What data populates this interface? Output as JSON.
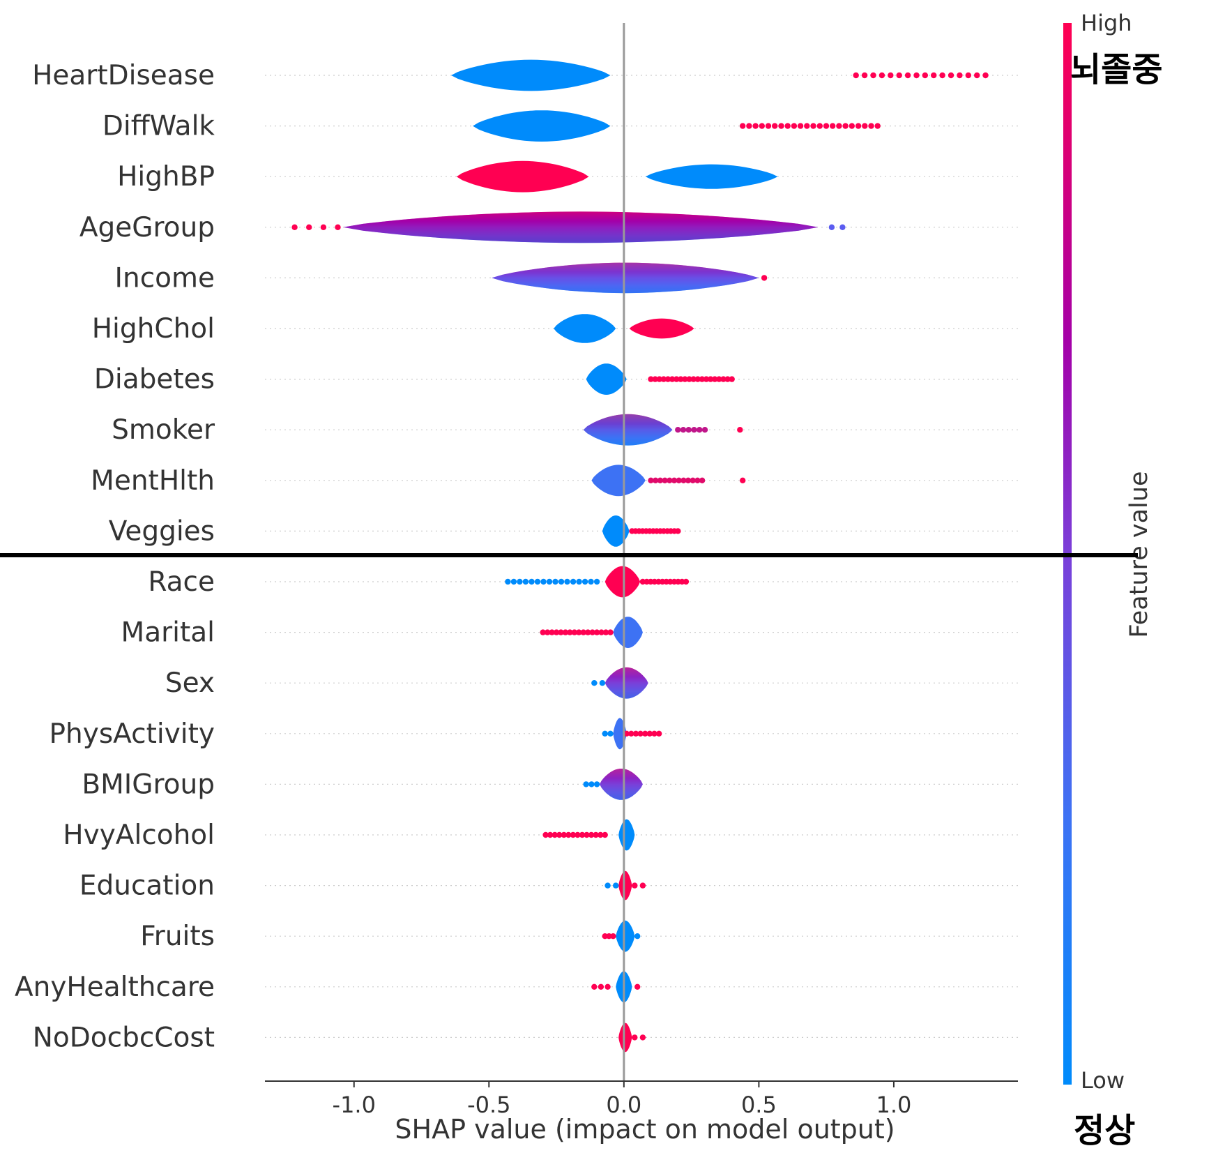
{
  "chart_data": {
    "type": "violin",
    "title": "",
    "xlabel": "SHAP value (impact on model output)",
    "xlim": [
      -1.33,
      1.46
    ],
    "xticks": [
      -1.0,
      -0.5,
      0.0,
      0.5,
      1.0
    ],
    "xtick_labels": [
      "-1.0",
      "-0.5",
      "0.0",
      "0.5",
      "1.0"
    ],
    "colorbar": {
      "title": "Feature value",
      "high_label": "High",
      "low_label": "Low",
      "high_color": "#ff0052",
      "low_color": "#008bfb",
      "mid_color": "#a400a8"
    },
    "annotations": {
      "top": "뇌졸중",
      "bottom": "정상",
      "separator_after_index": 9
    },
    "features": [
      {
        "name": "HeartDisease",
        "blobs": [
          {
            "lo": -0.64,
            "hi": -0.05,
            "w": 0.7,
            "color": "#008bfb"
          }
        ],
        "dots": [
          {
            "from": 0.86,
            "to": 1.34,
            "n": 16,
            "color": "#ff0052"
          }
        ]
      },
      {
        "name": "DiffWalk",
        "blobs": [
          {
            "lo": -0.56,
            "hi": -0.05,
            "w": 0.7,
            "color": "#008bfb"
          }
        ],
        "dots": [
          {
            "from": 0.44,
            "to": 0.94,
            "n": 22,
            "color": "#ff0052"
          }
        ]
      },
      {
        "name": "HighBP",
        "blobs": [
          {
            "lo": -0.62,
            "hi": -0.13,
            "w": 0.7,
            "color": "#ff0052"
          },
          {
            "lo": 0.08,
            "hi": 0.57,
            "w": 0.55,
            "color": "#008bfb"
          }
        ],
        "dots": []
      },
      {
        "name": "AgeGroup",
        "blobs": [
          {
            "lo": -1.04,
            "hi": 0.72,
            "w": 0.7,
            "color": "#a400a8",
            "grad": true
          }
        ],
        "dots": [
          {
            "from": -1.22,
            "to": -1.06,
            "n": 4,
            "color": "#ff0052"
          },
          {
            "from": 0.77,
            "to": 0.81,
            "n": 2,
            "color": "#5b5cf0"
          }
        ]
      },
      {
        "name": "Income",
        "blobs": [
          {
            "lo": -0.49,
            "hi": 0.5,
            "w": 0.68,
            "color": "#5b5cf0",
            "grad": true
          }
        ],
        "dots": [
          {
            "from": 0.52,
            "to": 0.52,
            "n": 1,
            "color": "#ff0052"
          }
        ]
      },
      {
        "name": "HighChol",
        "blobs": [
          {
            "lo": -0.26,
            "hi": -0.03,
            "w": 0.65,
            "color": "#008bfb"
          },
          {
            "lo": 0.02,
            "hi": 0.26,
            "w": 0.45,
            "color": "#ff0052"
          }
        ],
        "dots": []
      },
      {
        "name": "Diabetes",
        "blobs": [
          {
            "lo": -0.14,
            "hi": 0.01,
            "w": 0.7,
            "color": "#008bfb"
          }
        ],
        "dots": [
          {
            "from": 0.1,
            "to": 0.4,
            "n": 20,
            "color": "#ff0052"
          }
        ]
      },
      {
        "name": "Smoker",
        "blobs": [
          {
            "lo": -0.15,
            "hi": 0.18,
            "w": 0.7,
            "color": "#3d72f4",
            "grad": true
          }
        ],
        "dots": [
          {
            "from": 0.2,
            "to": 0.3,
            "n": 6,
            "color": "#c0168a"
          },
          {
            "from": 0.43,
            "to": 0.43,
            "n": 1,
            "color": "#ff0052"
          }
        ]
      },
      {
        "name": "MentHlth",
        "blobs": [
          {
            "lo": -0.12,
            "hi": 0.08,
            "w": 0.7,
            "color": "#3d72f4"
          }
        ],
        "dots": [
          {
            "from": 0.1,
            "to": 0.29,
            "n": 12,
            "color": "#e00a6a"
          },
          {
            "from": 0.44,
            "to": 0.44,
            "n": 1,
            "color": "#ff0052"
          }
        ]
      },
      {
        "name": "Veggies",
        "blobs": [
          {
            "lo": -0.08,
            "hi": 0.02,
            "w": 0.7,
            "color": "#008bfb"
          }
        ],
        "dots": [
          {
            "from": 0.03,
            "to": 0.2,
            "n": 14,
            "color": "#ff0052"
          }
        ]
      },
      {
        "name": "Race",
        "blobs": [
          {
            "lo": -0.07,
            "hi": 0.06,
            "w": 0.7,
            "color": "#ff0052"
          }
        ],
        "dots": [
          {
            "from": -0.43,
            "to": -0.1,
            "n": 16,
            "color": "#008bfb"
          },
          {
            "from": 0.07,
            "to": 0.23,
            "n": 12,
            "color": "#ff0052"
          }
        ]
      },
      {
        "name": "Marital",
        "blobs": [
          {
            "lo": -0.04,
            "hi": 0.07,
            "w": 0.7,
            "color": "#3d72f4"
          }
        ],
        "dots": [
          {
            "from": -0.3,
            "to": -0.05,
            "n": 16,
            "color": "#ff0052"
          }
        ]
      },
      {
        "name": "Sex",
        "blobs": [
          {
            "lo": -0.07,
            "hi": 0.09,
            "w": 0.7,
            "color": "#7a3fd9",
            "grad": true
          }
        ],
        "dots": [
          {
            "from": -0.11,
            "to": -0.08,
            "n": 2,
            "color": "#008bfb"
          }
        ]
      },
      {
        "name": "PhysActivity",
        "blobs": [
          {
            "lo": -0.04,
            "hi": 0.01,
            "w": 0.7,
            "color": "#3d72f4"
          }
        ],
        "dots": [
          {
            "from": 0.01,
            "to": 0.13,
            "n": 8,
            "color": "#ff0052"
          },
          {
            "from": -0.07,
            "to": -0.05,
            "n": 2,
            "color": "#008bfb"
          }
        ]
      },
      {
        "name": "BMIGroup",
        "blobs": [
          {
            "lo": -0.09,
            "hi": 0.07,
            "w": 0.7,
            "color": "#7a3fd9",
            "grad": true
          }
        ],
        "dots": [
          {
            "from": -0.14,
            "to": -0.1,
            "n": 3,
            "color": "#008bfb"
          }
        ]
      },
      {
        "name": "HvyAlcohol",
        "blobs": [
          {
            "lo": -0.02,
            "hi": 0.04,
            "w": 0.7,
            "color": "#008bfb"
          }
        ],
        "dots": [
          {
            "from": -0.29,
            "to": -0.07,
            "n": 14,
            "color": "#ff0052"
          }
        ]
      },
      {
        "name": "Education",
        "blobs": [
          {
            "lo": -0.02,
            "hi": 0.03,
            "w": 0.65,
            "color": "#ff0052"
          }
        ],
        "dots": [
          {
            "from": -0.06,
            "to": -0.03,
            "n": 2,
            "color": "#008bfb"
          },
          {
            "from": 0.04,
            "to": 0.07,
            "n": 2,
            "color": "#ff0052"
          }
        ]
      },
      {
        "name": "Fruits",
        "blobs": [
          {
            "lo": -0.03,
            "hi": 0.04,
            "w": 0.7,
            "color": "#008bfb"
          }
        ],
        "dots": [
          {
            "from": -0.07,
            "to": -0.04,
            "n": 3,
            "color": "#ff0052"
          },
          {
            "from": 0.05,
            "to": 0.06,
            "n": 1,
            "color": "#008bfb"
          }
        ]
      },
      {
        "name": "AnyHealthcare",
        "blobs": [
          {
            "lo": -0.03,
            "hi": 0.03,
            "w": 0.7,
            "color": "#008bfb"
          }
        ],
        "dots": [
          {
            "from": -0.11,
            "to": -0.06,
            "n": 3,
            "color": "#ff0052"
          },
          {
            "from": 0.05,
            "to": 0.05,
            "n": 1,
            "color": "#ff0052"
          }
        ]
      },
      {
        "name": "NoDocbcCost",
        "blobs": [
          {
            "lo": -0.02,
            "hi": 0.03,
            "w": 0.65,
            "color": "#ff0052"
          }
        ],
        "dots": [
          {
            "from": 0.04,
            "to": 0.07,
            "n": 2,
            "color": "#ff0052"
          }
        ]
      }
    ]
  }
}
